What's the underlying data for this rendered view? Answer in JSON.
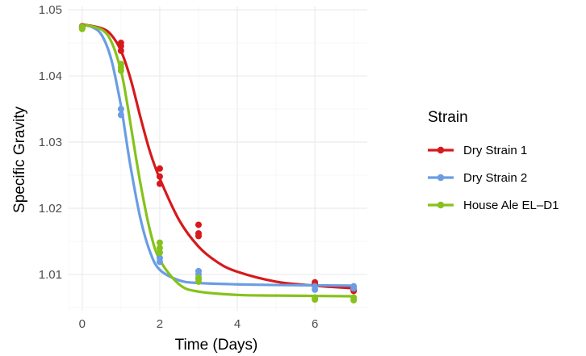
{
  "chart_data": {
    "type": "scatter",
    "xlabel": "Time (Days)",
    "ylabel": "Specific Gravity",
    "xlim": [
      -0.35,
      7.35
    ],
    "ylim": [
      1.0045,
      1.0505
    ],
    "x_ticks": [
      0,
      2,
      4,
      6
    ],
    "y_ticks": [
      1.01,
      1.02,
      1.03,
      1.04,
      1.05
    ],
    "x_tick_labels": [
      "0",
      "2",
      "4",
      "6"
    ],
    "y_tick_labels": [
      "1.01",
      "1.02",
      "1.03",
      "1.04",
      "1.05"
    ],
    "grid": true,
    "legend": {
      "title": "Strain",
      "position": "right"
    },
    "series": [
      {
        "name": "Dry Strain 1",
        "color": "#d7191c",
        "points": [
          {
            "x": 0,
            "y": 1.0475
          },
          {
            "x": 0,
            "y": 1.0473
          },
          {
            "x": 1,
            "y": 1.045
          },
          {
            "x": 1,
            "y": 1.0445
          },
          {
            "x": 1,
            "y": 1.0438
          },
          {
            "x": 2,
            "y": 1.026
          },
          {
            "x": 2,
            "y": 1.0248
          },
          {
            "x": 2,
            "y": 1.0237
          },
          {
            "x": 3,
            "y": 1.0175
          },
          {
            "x": 3,
            "y": 1.0162
          },
          {
            "x": 3,
            "y": 1.0158
          },
          {
            "x": 6,
            "y": 1.0088
          },
          {
            "x": 6,
            "y": 1.0085
          },
          {
            "x": 7,
            "y": 1.0077
          },
          {
            "x": 7,
            "y": 1.0075
          }
        ],
        "fit_curve": [
          {
            "x": 0,
            "y": 1.0478
          },
          {
            "x": 0.5,
            "y": 1.0472
          },
          {
            "x": 0.75,
            "y": 1.0462
          },
          {
            "x": 1,
            "y": 1.0438
          },
          {
            "x": 1.25,
            "y": 1.0395
          },
          {
            "x": 1.5,
            "y": 1.0338
          },
          {
            "x": 1.75,
            "y": 1.0285
          },
          {
            "x": 2,
            "y": 1.0245
          },
          {
            "x": 2.5,
            "y": 1.0182
          },
          {
            "x": 3,
            "y": 1.0142
          },
          {
            "x": 3.5,
            "y": 1.0118
          },
          {
            "x": 4,
            "y": 1.0104
          },
          {
            "x": 5,
            "y": 1.0089
          },
          {
            "x": 6,
            "y": 1.0083
          },
          {
            "x": 7,
            "y": 1.0079
          }
        ]
      },
      {
        "name": "Dry Strain 2",
        "color": "#6a9de3",
        "points": [
          {
            "x": 0,
            "y": 1.0474
          },
          {
            "x": 0,
            "y": 1.0472
          },
          {
            "x": 1,
            "y": 1.035
          },
          {
            "x": 1,
            "y": 1.0341
          },
          {
            "x": 2,
            "y": 1.0125
          },
          {
            "x": 2,
            "y": 1.0119
          },
          {
            "x": 3,
            "y": 1.0105
          },
          {
            "x": 3,
            "y": 1.01
          },
          {
            "x": 3,
            "y": 1.0093
          },
          {
            "x": 6,
            "y": 1.0082
          },
          {
            "x": 6,
            "y": 1.0077
          },
          {
            "x": 7,
            "y": 1.0082
          },
          {
            "x": 7,
            "y": 1.0079
          }
        ],
        "fit_curve": [
          {
            "x": 0,
            "y": 1.0477
          },
          {
            "x": 0.25,
            "y": 1.0474
          },
          {
            "x": 0.5,
            "y": 1.0462
          },
          {
            "x": 0.75,
            "y": 1.0425
          },
          {
            "x": 1,
            "y": 1.0355
          },
          {
            "x": 1.1,
            "y": 1.0318
          },
          {
            "x": 1.25,
            "y": 1.0262
          },
          {
            "x": 1.5,
            "y": 1.0185
          },
          {
            "x": 1.75,
            "y": 1.0134
          },
          {
            "x": 2,
            "y": 1.0107
          },
          {
            "x": 2.5,
            "y": 1.0091
          },
          {
            "x": 3,
            "y": 1.0087
          },
          {
            "x": 4,
            "y": 1.0085
          },
          {
            "x": 5,
            "y": 1.0084
          },
          {
            "x": 7,
            "y": 1.0083
          }
        ]
      },
      {
        "name": "House Ale EL–D1",
        "color": "#86c21b",
        "points": [
          {
            "x": 0,
            "y": 1.0474
          },
          {
            "x": 0,
            "y": 1.0471
          },
          {
            "x": 1,
            "y": 1.0418
          },
          {
            "x": 1,
            "y": 1.0413
          },
          {
            "x": 1,
            "y": 1.0408
          },
          {
            "x": 2,
            "y": 1.0148
          },
          {
            "x": 2,
            "y": 1.014
          },
          {
            "x": 2,
            "y": 1.0133
          },
          {
            "x": 3,
            "y": 1.0095
          },
          {
            "x": 3,
            "y": 1.0089
          },
          {
            "x": 6,
            "y": 1.0065
          },
          {
            "x": 6,
            "y": 1.0062
          },
          {
            "x": 7,
            "y": 1.0065
          },
          {
            "x": 7,
            "y": 1.0061
          }
        ],
        "fit_curve": [
          {
            "x": 0,
            "y": 1.0478
          },
          {
            "x": 0.5,
            "y": 1.047
          },
          {
            "x": 0.75,
            "y": 1.0452
          },
          {
            "x": 1,
            "y": 1.0408
          },
          {
            "x": 1.15,
            "y": 1.0362
          },
          {
            "x": 1.3,
            "y": 1.0308
          },
          {
            "x": 1.5,
            "y": 1.0238
          },
          {
            "x": 1.75,
            "y": 1.0166
          },
          {
            "x": 2,
            "y": 1.0122
          },
          {
            "x": 2.5,
            "y": 1.0085
          },
          {
            "x": 3,
            "y": 1.0074
          },
          {
            "x": 4,
            "y": 1.0069
          },
          {
            "x": 5,
            "y": 1.0068
          },
          {
            "x": 7,
            "y": 1.0067
          }
        ]
      }
    ]
  }
}
